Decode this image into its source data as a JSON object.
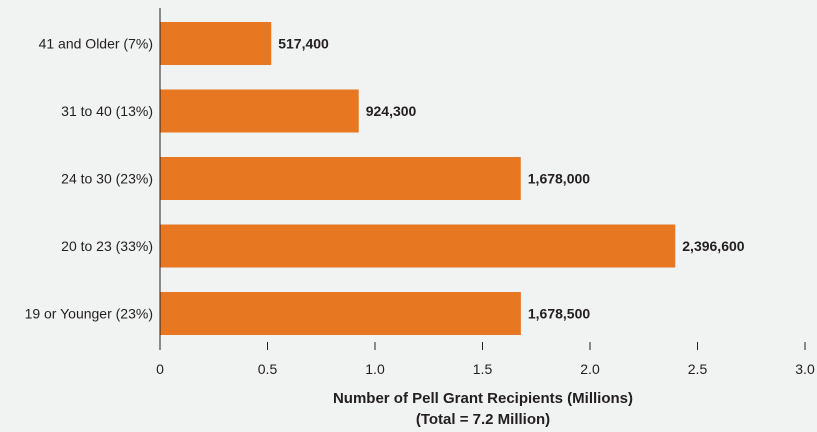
{
  "chart_data": {
    "type": "bar",
    "orientation": "horizontal",
    "categories": [
      "41 and Older (7%)",
      "31 to 40 (13%)",
      "24 to 30 (23%)",
      "20 to 23 (33%)",
      "19 or Younger (23%)"
    ],
    "values": [
      0.5174,
      0.9243,
      1.678,
      2.3966,
      1.6785
    ],
    "value_labels": [
      "517,400",
      "924,300",
      "1,678,000",
      "2,396,600",
      "1,678,500"
    ],
    "xlabel": "Number of Pell Grant Recipients (Millions)",
    "xlabel_line2": "(Total = 7.2 Million)",
    "xlim": [
      0,
      3.0
    ],
    "xticks": [
      0,
      0.5,
      1.0,
      1.5,
      2.0,
      2.5,
      3.0
    ],
    "xtick_labels": [
      "0",
      "0.5",
      "1.0",
      "1.5",
      "2.0",
      "2.5",
      "3.0"
    ],
    "grid": false,
    "bar_color": "#e87722",
    "background_color": "#f1f2f2"
  }
}
